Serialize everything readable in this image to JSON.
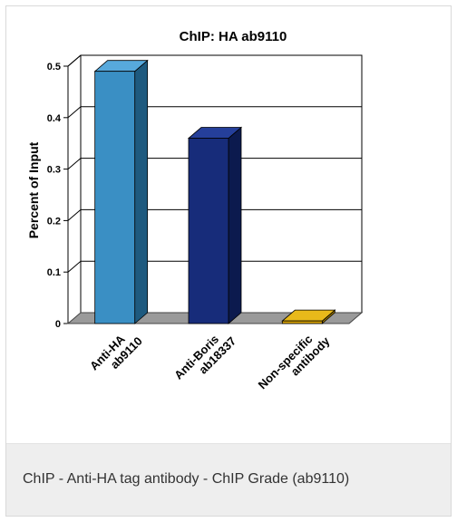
{
  "figure": {
    "caption": "ChIP - Anti-HA tag antibody - ChIP Grade (ab9110)"
  },
  "chart_data": {
    "type": "bar",
    "title": "ChIP: HA ab9110",
    "xlabel": "",
    "ylabel": "Percent of  Input",
    "ylim": [
      0,
      0.5
    ],
    "yticks": [
      "0",
      "0.1",
      "0.2",
      "0.3",
      "0.4",
      "0.5"
    ],
    "categories": [
      [
        "Anti-HA",
        "ab9110"
      ],
      [
        "Anti-Boris",
        "ab18337"
      ],
      [
        "Non-specific",
        "antibody"
      ]
    ],
    "values": [
      0.49,
      0.36,
      0.005
    ],
    "grid": true,
    "legend": "none",
    "colors": {
      "bars_front": [
        "#3a8fc4",
        "#172c7a",
        "#d9a400"
      ],
      "bars_side": [
        "#1e5a7f",
        "#0c1a4e",
        "#8f6d00"
      ],
      "bars_top": [
        "#57a9dc",
        "#253f9a",
        "#e8b91a"
      ],
      "floor": "#9a9a9a",
      "back_wall": "#ffffff",
      "gridline": "#000000"
    }
  }
}
